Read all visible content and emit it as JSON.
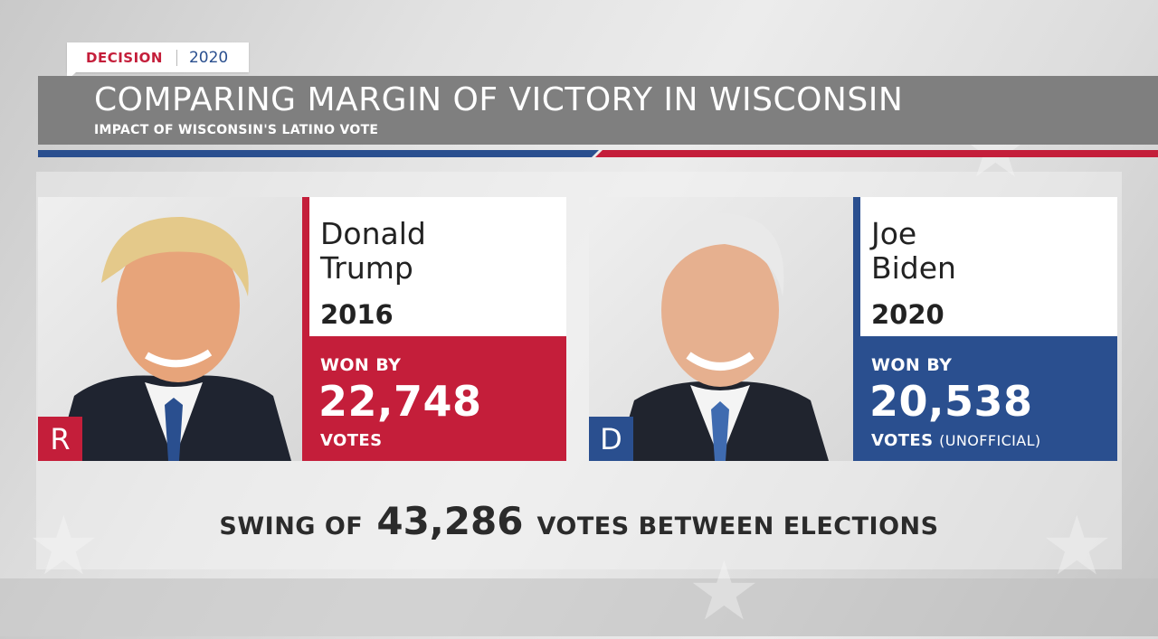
{
  "tag": {
    "label": "DECISION",
    "year": "2020"
  },
  "header": {
    "title": "COMPARING MARGIN OF VICTORY IN WISCONSIN",
    "subtitle": "IMPACT OF WISCONSIN'S LATINO VOTE"
  },
  "candidates": [
    {
      "name_first": "Donald",
      "name_last": "Trump",
      "year": "2016",
      "won_by_label": "WON BY",
      "margin": "22,748",
      "votes_label": "VOTES",
      "note": "",
      "party": "R",
      "color": "#c41e3a"
    },
    {
      "name_first": "Joe",
      "name_last": "Biden",
      "year": "2020",
      "won_by_label": "WON BY",
      "margin": "20,538",
      "votes_label": "VOTES",
      "note": "(UNOFFICIAL)",
      "party": "D",
      "color": "#2a4f8f"
    }
  ],
  "swing": {
    "prefix": "SWING OF",
    "number": "43,286",
    "suffix": "VOTES BETWEEN ELECTIONS"
  },
  "colors": {
    "republican": "#c41e3a",
    "democrat": "#2a4f8f",
    "header": "#7f7f7f"
  }
}
